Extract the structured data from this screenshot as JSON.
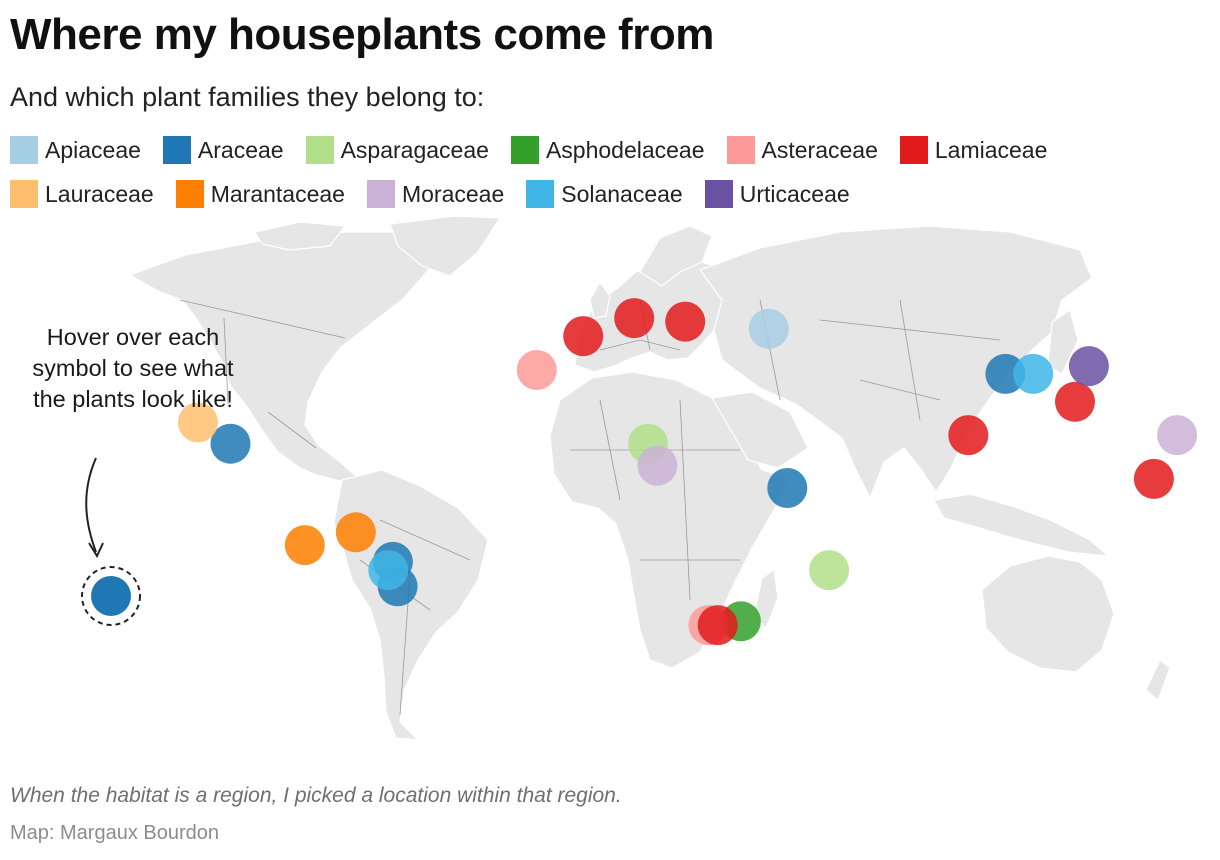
{
  "header": {
    "title": "Where my houseplants come from",
    "subtitle": "And which plant families they belong to:"
  },
  "legend": [
    {
      "label": "Apiaceae",
      "color": "#a6cee3"
    },
    {
      "label": "Araceae",
      "color": "#1f78b4"
    },
    {
      "label": "Asparagaceae",
      "color": "#b2df8a"
    },
    {
      "label": "Asphodelaceae",
      "color": "#33a02c"
    },
    {
      "label": "Asteraceae",
      "color": "#fb9a99"
    },
    {
      "label": "Lamiaceae",
      "color": "#e31a1c"
    },
    {
      "label": "Lauraceae",
      "color": "#fdbf6f"
    },
    {
      "label": "Marantaceae",
      "color": "#ff7f00"
    },
    {
      "label": "Moraceae",
      "color": "#cab2d6"
    },
    {
      "label": "Solanaceae",
      "color": "#3fb6e6"
    },
    {
      "label": "Urticaceae",
      "color": "#6a51a3"
    }
  ],
  "annotation": {
    "text": "Hover over each symbol to see what the plants look like!",
    "example_family": "Araceae"
  },
  "plants": [
    {
      "family": "Apiaceae",
      "lon": 34,
      "lat": 39
    },
    {
      "family": "Araceae",
      "lon": -82,
      "lat": 10
    },
    {
      "family": "Araceae",
      "lon": -47,
      "lat": -17
    },
    {
      "family": "Araceae",
      "lon": -46,
      "lat": -23
    },
    {
      "family": "Araceae",
      "lon": 38,
      "lat": 0
    },
    {
      "family": "Araceae",
      "lon": 85,
      "lat": 27
    },
    {
      "family": "Asparagaceae",
      "lon": 8,
      "lat": 10
    },
    {
      "family": "Asparagaceae",
      "lon": 47,
      "lat": -19
    },
    {
      "family": "Asphodelaceae",
      "lon": 28,
      "lat": -32
    },
    {
      "family": "Asteraceae",
      "lon": -16,
      "lat": 28
    },
    {
      "family": "Asteraceae",
      "lon": 21,
      "lat": -33
    },
    {
      "family": "Lamiaceae",
      "lon": 23,
      "lat": -33
    },
    {
      "family": "Lamiaceae",
      "lon": -6,
      "lat": 37
    },
    {
      "family": "Lamiaceae",
      "lon": 5,
      "lat": 42
    },
    {
      "family": "Lamiaceae",
      "lon": 16,
      "lat": 41
    },
    {
      "family": "Lamiaceae",
      "lon": 77,
      "lat": 12
    },
    {
      "family": "Lamiaceae",
      "lon": 100,
      "lat": 20
    },
    {
      "family": "Lamiaceae",
      "lon": 117,
      "lat": 2
    },
    {
      "family": "Lauraceae",
      "lon": -89,
      "lat": 15
    },
    {
      "family": "Marantaceae",
      "lon": -55,
      "lat": -10
    },
    {
      "family": "Marantaceae",
      "lon": -66,
      "lat": -13
    },
    {
      "family": "Moraceae",
      "lon": 10,
      "lat": 5
    },
    {
      "family": "Moraceae",
      "lon": 122,
      "lat": 12
    },
    {
      "family": "Solanaceae",
      "lon": -48,
      "lat": -19
    },
    {
      "family": "Solanaceae",
      "lon": 91,
      "lat": 27
    },
    {
      "family": "Urticaceae",
      "lon": 103,
      "lat": 29
    }
  ],
  "footer": {
    "note": "When the habitat is a region, I picked a location within that region.",
    "credit": "Map: Margaux Bourdon"
  }
}
